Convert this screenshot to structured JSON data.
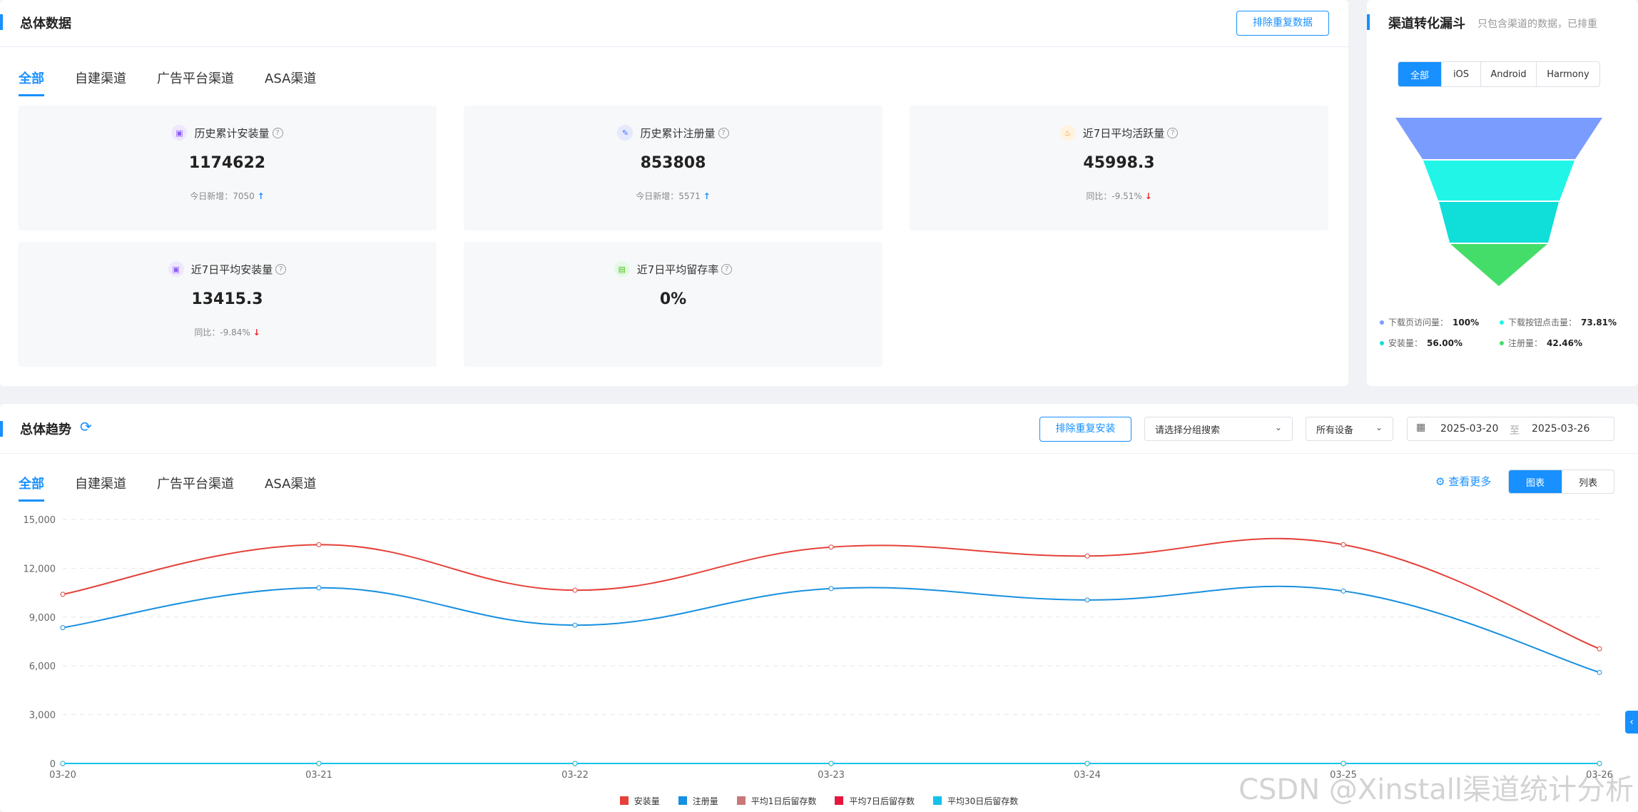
{
  "overview": {
    "title": "总体数据",
    "dedupe_button": "排除重复数据",
    "tabs": [
      "全部",
      "自建渠道",
      "广告平台渠道",
      "ASA渠道"
    ],
    "cards": [
      {
        "label": "历史累计安装量",
        "value": "1174622",
        "sub_label": "今日新增：",
        "sub_value": "7050",
        "trend": "up",
        "icon": "install-icon",
        "icon_color": "#8b5cf6"
      },
      {
        "label": "历史累计注册量",
        "value": "853808",
        "sub_label": "今日新增：",
        "sub_value": "5571",
        "trend": "up",
        "icon": "edit-icon",
        "icon_color": "#4f6ef7"
      },
      {
        "label": "近7日平均活跃量",
        "value": "45998.3",
        "sub_label": "同比：",
        "sub_value": "-9.51%",
        "trend": "down",
        "icon": "fire-icon",
        "icon_color": "#fa8c16"
      },
      {
        "label": "近7日平均安装量",
        "value": "13415.3",
        "sub_label": "同比：",
        "sub_value": "-9.84%",
        "trend": "down",
        "icon": "install-icon",
        "icon_color": "#8b5cf6"
      },
      {
        "label": "近7日平均留存率",
        "value": "0%",
        "sub_label": "",
        "sub_value": "",
        "trend": "",
        "icon": "retention-icon",
        "icon_color": "#52c41a"
      }
    ]
  },
  "funnel": {
    "title": "渠道转化漏斗",
    "subtitle": "只包含渠道的数据，已排重",
    "platform_tabs": [
      "全部",
      "iOS",
      "Android",
      "Harmony"
    ],
    "levels": [
      {
        "label": "下载页访问量：",
        "value": "100%",
        "color": "#7b9cff"
      },
      {
        "label": "下载按钮点击量：",
        "value": "73.81%",
        "color": "#20f5e8"
      },
      {
        "label": "安装量：",
        "value": "56.00%",
        "color": "#10ded8"
      },
      {
        "label": "注册量：",
        "value": "42.46%",
        "color": "#45dd6a"
      }
    ]
  },
  "trend": {
    "title": "总体趋势",
    "dedupe_button": "排除重复安装",
    "group_select": "请选择分组搜索",
    "device_select": "所有设备",
    "date_start": "2025-03-20",
    "date_sep": "至",
    "date_end": "2025-03-26",
    "tabs": [
      "全部",
      "自建渠道",
      "广告平台渠道",
      "ASA渠道"
    ],
    "more_link": "查看更多",
    "view_toggle": [
      "图表",
      "列表"
    ]
  },
  "chart_data": {
    "type": "line",
    "x": [
      "03-20",
      "03-21",
      "03-22",
      "03-23",
      "03-24",
      "03-25",
      "03-26"
    ],
    "ylim": [
      0,
      15000
    ],
    "yticks": [
      "0",
      "3,000",
      "6,000",
      "9,000",
      "12,000",
      "15,000"
    ],
    "series": [
      {
        "name": "安装量",
        "color": "#e5413a",
        "values": [
          10400,
          13450,
          10650,
          13300,
          12750,
          13450,
          7050
        ]
      },
      {
        "name": "注册量",
        "color": "#1890e0",
        "values": [
          8350,
          10800,
          8500,
          10750,
          10050,
          10600,
          5600
        ]
      },
      {
        "name": "平均1日后留存数",
        "color": "#c9787a",
        "values": [
          0,
          0,
          0,
          0,
          0,
          0,
          0
        ]
      },
      {
        "name": "平均7日后留存数",
        "color": "#e5173f",
        "values": [
          0,
          0,
          0,
          0,
          0,
          0,
          0
        ]
      },
      {
        "name": "平均30日后留存数",
        "color": "#13c2e8",
        "values": [
          0,
          0,
          0,
          0,
          0,
          0,
          0
        ]
      }
    ]
  },
  "watermark": "CSDN @Xinstall渠道统计分析"
}
